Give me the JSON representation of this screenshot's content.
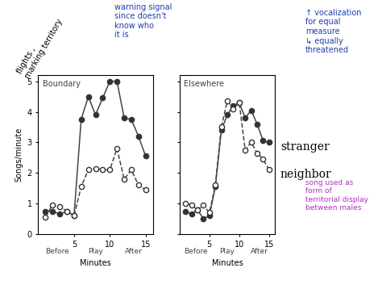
{
  "chart_data": [
    {
      "type": "line",
      "title": "Boundary",
      "xlabel": "Minutes",
      "ylabel": "Songs/minute",
      "phase_labels": [
        "Before",
        "Play",
        "After"
      ],
      "x": [
        1,
        2,
        3,
        4,
        5,
        6,
        7,
        8,
        9,
        10,
        11,
        12,
        13,
        14,
        15
      ],
      "xlim": [
        0,
        16
      ],
      "xticks": [
        5,
        10,
        15
      ],
      "ylim": [
        0,
        5.2
      ],
      "yticks": [
        0,
        1,
        2,
        3,
        4,
        5
      ],
      "series": [
        {
          "color": "#333333",
          "marker": "filled",
          "line_style": "solid",
          "values": [
            0.75,
            0.75,
            0.65,
            0.75,
            0.6,
            3.75,
            4.5,
            3.9,
            4.45,
            5.0,
            5.0,
            3.8,
            3.75,
            3.2,
            2.55
          ]
        },
        {
          "color": "#ffffff",
          "marker": "open",
          "line_style": "dashed",
          "values": [
            0.55,
            0.95,
            0.9,
            0.75,
            0.6,
            1.55,
            2.1,
            2.15,
            2.1,
            2.1,
            2.8,
            1.8,
            2.1,
            1.6,
            1.45
          ]
        }
      ]
    },
    {
      "type": "line",
      "title": "Elsewhere",
      "xlabel": "Minutes",
      "tick_labels": "x",
      "phase_labels": [
        "Before",
        "Play",
        "After"
      ],
      "x": [
        1,
        2,
        3,
        4,
        5,
        6,
        7,
        8,
        9,
        10,
        11,
        12,
        13,
        14,
        15
      ],
      "xlim": [
        0,
        16
      ],
      "xticks": [
        5,
        10,
        15
      ],
      "ylim": [
        0,
        5.2
      ],
      "yticks": [
        0,
        1,
        2,
        3,
        4,
        5
      ],
      "series": [
        {
          "name": "stranger",
          "color": "#333333",
          "marker": "filled",
          "line_style": "solid",
          "values": [
            0.75,
            0.65,
            0.8,
            0.5,
            0.6,
            1.55,
            3.4,
            3.9,
            4.2,
            4.3,
            3.8,
            4.05,
            3.6,
            3.05,
            3.0
          ]
        },
        {
          "name": "neighbor",
          "color": "#ffffff",
          "marker": "open",
          "line_style": "dashed",
          "values": [
            1.0,
            0.95,
            0.8,
            0.95,
            0.7,
            1.6,
            3.5,
            4.35,
            4.1,
            4.3,
            2.75,
            3.0,
            2.65,
            2.45,
            2.1
          ]
        }
      ]
    }
  ],
  "annotations": {
    "black": "flights ,\nmarking territory",
    "blue": "warning signal\nsince doesn't\nknow who\nit is",
    "right": "↑ vocalization\nfor equal\nmeasure\n↳ equally\nthreatened",
    "purple": "song used as\nform of\nterritorial display\nbetween males"
  }
}
